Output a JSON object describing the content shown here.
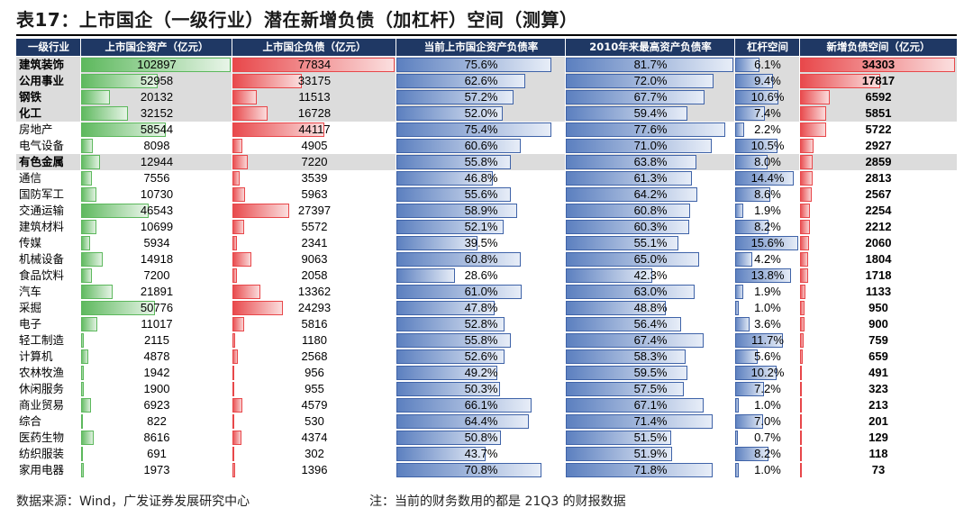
{
  "title": "表17：上市国企（一级行业）潜在新增负债（加杠杆）空间（测算）",
  "footer": {
    "source": "数据来源：Wind，广发证券发展研究中心",
    "note": "注：当前的财务数用的都是 21Q3 的财报数据"
  },
  "colors": {
    "header_bg": "#1f3864",
    "row_shade": "#dcdcdc",
    "asset_bar": "#5cb85c",
    "debt_bar": "#e8474a",
    "ratio_bar": "#5b7fbf",
    "space_bar": "#e8474a"
  },
  "chart_data": {
    "type": "table",
    "columns": [
      "一级行业",
      "上市国企资产（亿元）",
      "上市国企负债（亿元）",
      "当前上市国企资产负债率",
      "2010年来最高资产负债率",
      "杠杆空间",
      "新增负债空间（亿元）"
    ],
    "rows": [
      {
        "industry": "建筑装饰",
        "assets": 102897,
        "liabilities": 77834,
        "cur_ratio": "75.6%",
        "max_ratio": "81.7%",
        "leverage": "6.1%",
        "new_debt": 34303,
        "bold": true,
        "shade": true
      },
      {
        "industry": "公用事业",
        "assets": 52958,
        "liabilities": 33175,
        "cur_ratio": "62.6%",
        "max_ratio": "72.0%",
        "leverage": "9.4%",
        "new_debt": 17817,
        "bold": true,
        "shade": true
      },
      {
        "industry": "钢铁",
        "assets": 20132,
        "liabilities": 11513,
        "cur_ratio": "57.2%",
        "max_ratio": "67.7%",
        "leverage": "10.6%",
        "new_debt": 6592,
        "bold": true,
        "shade": true
      },
      {
        "industry": "化工",
        "assets": 32152,
        "liabilities": 16728,
        "cur_ratio": "52.0%",
        "max_ratio": "59.4%",
        "leverage": "7.4%",
        "new_debt": 5851,
        "bold": true,
        "shade": true
      },
      {
        "industry": "房地产",
        "assets": 58544,
        "liabilities": 44117,
        "cur_ratio": "75.4%",
        "max_ratio": "77.6%",
        "leverage": "2.2%",
        "new_debt": 5722,
        "bold": false,
        "shade": false
      },
      {
        "industry": "电气设备",
        "assets": 8098,
        "liabilities": 4905,
        "cur_ratio": "60.6%",
        "max_ratio": "71.0%",
        "leverage": "10.5%",
        "new_debt": 2927,
        "bold": false,
        "shade": false
      },
      {
        "industry": "有色金属",
        "assets": 12944,
        "liabilities": 7220,
        "cur_ratio": "55.8%",
        "max_ratio": "63.8%",
        "leverage": "8.0%",
        "new_debt": 2859,
        "bold": true,
        "shade": true
      },
      {
        "industry": "通信",
        "assets": 7556,
        "liabilities": 3539,
        "cur_ratio": "46.8%",
        "max_ratio": "61.3%",
        "leverage": "14.4%",
        "new_debt": 2813,
        "bold": false,
        "shade": false
      },
      {
        "industry": "国防军工",
        "assets": 10730,
        "liabilities": 5963,
        "cur_ratio": "55.6%",
        "max_ratio": "64.2%",
        "leverage": "8.6%",
        "new_debt": 2567,
        "bold": false,
        "shade": false
      },
      {
        "industry": "交通运输",
        "assets": 46543,
        "liabilities": 27397,
        "cur_ratio": "58.9%",
        "max_ratio": "60.8%",
        "leverage": "1.9%",
        "new_debt": 2254,
        "bold": false,
        "shade": false
      },
      {
        "industry": "建筑材料",
        "assets": 10699,
        "liabilities": 5572,
        "cur_ratio": "52.1%",
        "max_ratio": "60.3%",
        "leverage": "8.2%",
        "new_debt": 2212,
        "bold": false,
        "shade": false
      },
      {
        "industry": "传媒",
        "assets": 5934,
        "liabilities": 2341,
        "cur_ratio": "39.5%",
        "max_ratio": "55.1%",
        "leverage": "15.6%",
        "new_debt": 2060,
        "bold": false,
        "shade": false
      },
      {
        "industry": "机械设备",
        "assets": 14918,
        "liabilities": 9063,
        "cur_ratio": "60.8%",
        "max_ratio": "65.0%",
        "leverage": "4.2%",
        "new_debt": 1804,
        "bold": false,
        "shade": false
      },
      {
        "industry": "食品饮料",
        "assets": 7200,
        "liabilities": 2058,
        "cur_ratio": "28.6%",
        "max_ratio": "42.3%",
        "leverage": "13.8%",
        "new_debt": 1718,
        "bold": false,
        "shade": false
      },
      {
        "industry": "汽车",
        "assets": 21891,
        "liabilities": 13362,
        "cur_ratio": "61.0%",
        "max_ratio": "63.0%",
        "leverage": "1.9%",
        "new_debt": 1133,
        "bold": false,
        "shade": false
      },
      {
        "industry": "采掘",
        "assets": 50776,
        "liabilities": 24293,
        "cur_ratio": "47.8%",
        "max_ratio": "48.8%",
        "leverage": "1.0%",
        "new_debt": 950,
        "bold": false,
        "shade": false
      },
      {
        "industry": "电子",
        "assets": 11017,
        "liabilities": 5816,
        "cur_ratio": "52.8%",
        "max_ratio": "56.4%",
        "leverage": "3.6%",
        "new_debt": 900,
        "bold": false,
        "shade": false
      },
      {
        "industry": "轻工制造",
        "assets": 2115,
        "liabilities": 1180,
        "cur_ratio": "55.8%",
        "max_ratio": "67.4%",
        "leverage": "11.7%",
        "new_debt": 759,
        "bold": false,
        "shade": false
      },
      {
        "industry": "计算机",
        "assets": 4878,
        "liabilities": 2568,
        "cur_ratio": "52.6%",
        "max_ratio": "58.3%",
        "leverage": "5.6%",
        "new_debt": 659,
        "bold": false,
        "shade": false
      },
      {
        "industry": "农林牧渔",
        "assets": 1942,
        "liabilities": 956,
        "cur_ratio": "49.2%",
        "max_ratio": "59.5%",
        "leverage": "10.2%",
        "new_debt": 491,
        "bold": false,
        "shade": false
      },
      {
        "industry": "休闲服务",
        "assets": 1900,
        "liabilities": 955,
        "cur_ratio": "50.3%",
        "max_ratio": "57.5%",
        "leverage": "7.2%",
        "new_debt": 323,
        "bold": false,
        "shade": false
      },
      {
        "industry": "商业贸易",
        "assets": 6923,
        "liabilities": 4579,
        "cur_ratio": "66.1%",
        "max_ratio": "67.1%",
        "leverage": "1.0%",
        "new_debt": 213,
        "bold": false,
        "shade": false
      },
      {
        "industry": "综合",
        "assets": 822,
        "liabilities": 530,
        "cur_ratio": "64.4%",
        "max_ratio": "71.4%",
        "leverage": "7.0%",
        "new_debt": 201,
        "bold": false,
        "shade": false
      },
      {
        "industry": "医药生物",
        "assets": 8616,
        "liabilities": 4374,
        "cur_ratio": "50.8%",
        "max_ratio": "51.5%",
        "leverage": "0.7%",
        "new_debt": 129,
        "bold": false,
        "shade": false
      },
      {
        "industry": "纺织服装",
        "assets": 691,
        "liabilities": 302,
        "cur_ratio": "43.7%",
        "max_ratio": "51.9%",
        "leverage": "8.2%",
        "new_debt": 118,
        "bold": false,
        "shade": false
      },
      {
        "industry": "家用电器",
        "assets": 1973,
        "liabilities": 1396,
        "cur_ratio": "70.8%",
        "max_ratio": "71.8%",
        "leverage": "1.0%",
        "new_debt": 73,
        "bold": false,
        "shade": false
      }
    ]
  }
}
